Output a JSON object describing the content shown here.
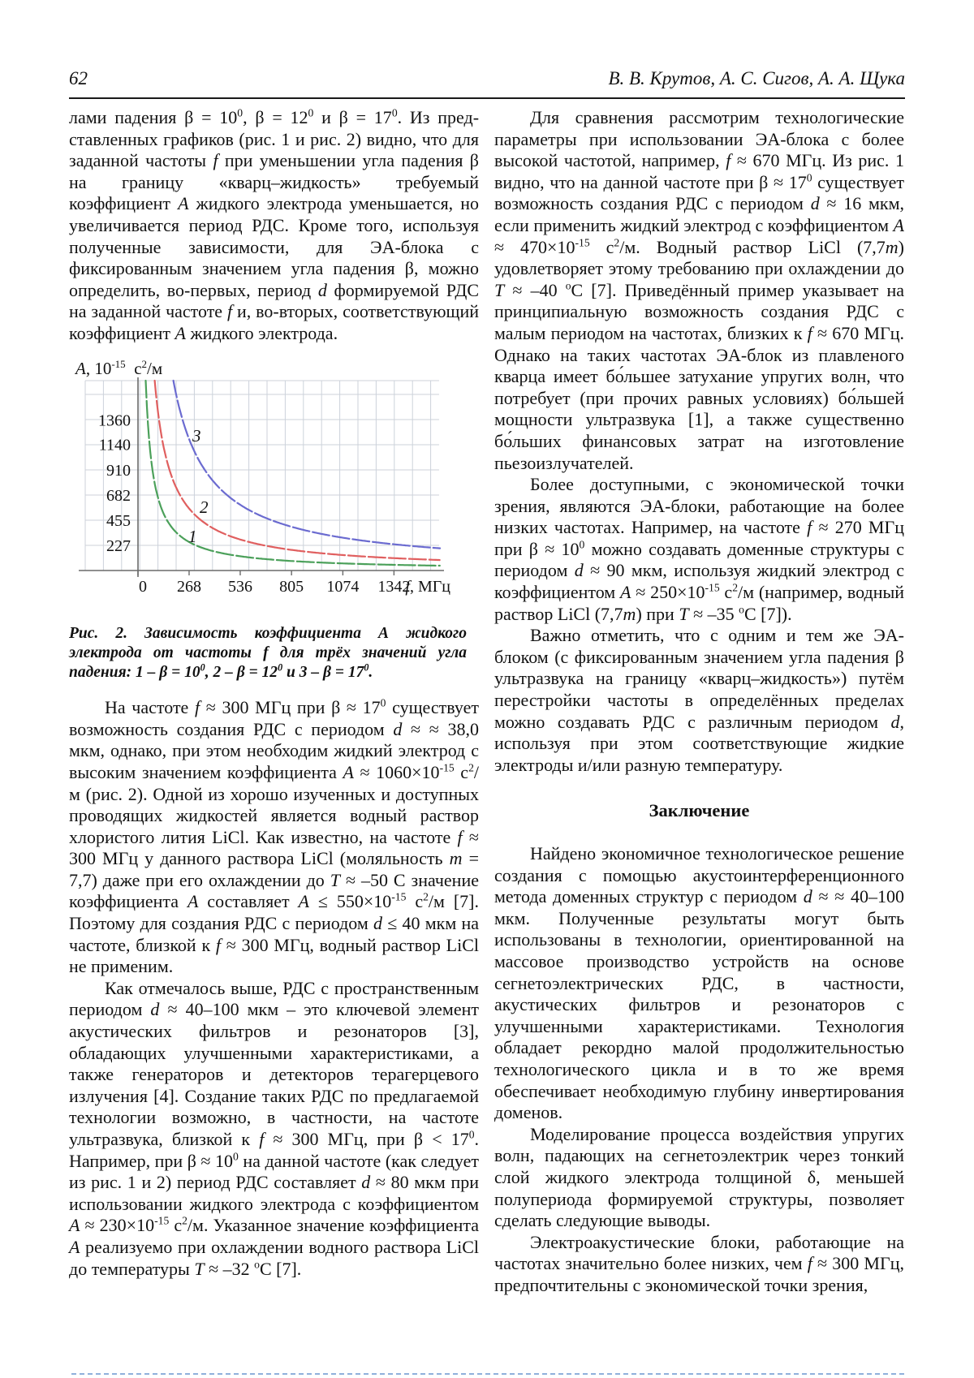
{
  "page": {
    "number": "62",
    "authors": "В. В. Крутов, А. С. Сигов, А. А. Щука"
  },
  "left_column": {
    "para_continuation_html": "лами падения β = 10<sup>0</sup>, β = 12<sup>0</sup> и β = 17<sup>0</sup>. Из пред­ставленных графиков (рис. 1 и рис. 2) видно, что для заданной частоты <i>f</i> при уменьшении угла падения β на границу «кварц–жидкость» требуемый коэффициент <i>А</i> жидкого электрода уменьшается, но увеличивается период РДС. Кроме того, используя полученные зависимости, для ЭА-блока с фиксированным значением угла падения β, можно определить, во-первых, период <i>d</i> формируемой РДС на заданной частоте <i>f</i> и, во-вторых, соответствующий коэффициент <i>А</i> жидкого электрода.",
    "figure": {
      "caption_html": "Рис. 2. Зависимость коэффициента <i>А</i> жидкого электрода от частоты <i>f</i> для трёх значений угла падения: 1 – <i>β</i> = 10<sup>0</sup>, 2 – <i>β</i> = 12<sup>0</sup> и 3 – <i>β</i> = 17<sup>0</sup>."
    },
    "para_2_html": "На частоте <i>f</i> ≈ 300 МГц при β ≈ 17<sup>0</sup> существует возможность создания РДС с периодом <i>d</i> ≈ ≈ 38,0 мкм, однако, при этом необходим жидкий электрод с высоким значением коэффициента <i>А</i> ≈ 1060×10<sup>-15</sup> с<sup>2</sup>/м (рис. 2). Одной из хорошо изученных и доступных проводящих жидкостей является водный раствор хлористого лития LiCl. Как известно, на частоте <i>f</i> ≈ 300 МГц у данного раствора LiCl (моляльность <i>m</i> = 7,7) даже при его охлаждении до <i>Т</i> ≈ –50 С значение коэффициента <i>А</i> составляет <i>А</i> ≤ 550×10<sup>-15</sup> с<sup>2</sup>/м [7]. Поэтому для создания РДС с периодом <i>d</i> ≤ 40 мкм на частоте, близкой к <i>f</i> ≈ 300 МГц, водный раствор LiCl не применим.",
    "para_3_html": "Как отмечалось выше, РДС с пространственным периодом <i>d</i> ≈ 40–100 мкм – это ключевой элемент акустических фильтров и резонаторов [3], обладающих улучшенными характеристиками, а также генераторов и детекторов терагерцевого излучения [4]. Создание таких РДС по предлагаемой технологии возможно, в частности, на частоте ультразвука, близкой к <i>f</i> ≈ 300 МГц, при β &lt; 17<sup>0</sup>. Например, при β ≈ 10<sup>0</sup> на данной частоте (как следует из рис. 1 и 2) период РДС составляет <i>d</i> ≈ 80 мкм при использовании жидкого электрода с коэффициентом <i>А</i> ≈ 230×10<sup>-15</sup> с<sup>2</sup>/м. Указанное значение коэффициента <i>А</i> реализуемо при охлаждении водного раствора LiCl до температуры <i>Т</i> ≈ –32 <sup>о</sup>С [7]."
  },
  "right_column": {
    "para_1_html": "Для сравнения рассмотрим технологические параметры при использовании ЭА-блока с более высокой частотой, например, <i>f</i> ≈ 670 МГц. Из рис. 1 видно, что на данной частоте при β ≈ 17<sup>0</sup> существует возможность создания РДС с периодом <i>d</i> ≈ 16 мкм, если применить жидкий электрод с коэффициентом <i>А</i> ≈ 470×10<sup>-15</sup> с<sup>2</sup>/м. Водный раствор LiCl (7,7<i>m</i>) удовлетворяет этому требованию при охлаждении до <i>Т</i> ≈ –40 <sup>о</sup>С [7]. Приведённый пример указывает на принципиальную возможность создания РДС с малым периодом на частотах, близких к <i>f</i> ≈ 670 МГц. Однако на таких частотах ЭА-блок из плавленого кварца имеет бо́льшее затухание упругих волн, что потребует (при прочих равных условиях) бо́льшей мощности ультразвука [1], а также существенно бо́льших финансовых затрат на изготовление пьезоизлучателей.",
    "para_2_html": "Более доступными, с экономической точки зрения, являются ЭА-блоки, работающие на более низких частотах. Например, на частоте <i>f</i> ≈ 270 МГц при β ≈ 10<sup>0</sup> можно создавать доменные структуры с периодом <i>d</i> ≈ 90 мкм, используя жидкий электрод с коэффициентом <i>А</i> ≈ 250×10<sup>-15</sup> с<sup>2</sup>/м (например, водный раствор LiCl (7,7<i>m</i>) при <i>Т</i> ≈ –35 <sup>о</sup>С [7]).",
    "para_3_html": "Важно отметить, что с одним и тем же ЭА-блоком (с фиксированным значением угла падения β ультразвука на границу «кварц–жидкость») путём перестройки частоты в определённых пределах можно создавать РДС с различным периодом <i>d</i>, используя при этом соответствующие жидкие электроды и/или разную температуру.",
    "conclusion_heading": "Заключение",
    "para_4_html": "Найдено экономичное технологическое решение создания с помощью акустоинтерференционного метода доменных структур с периодом <i>d</i> ≈ ≈ 40–100 мкм. Полученные результаты могут быть использованы в технологии, ориентированной на массовое производство устройств на основе сегнетоэлектрических РДС, в частности, акустических фильтров и резонаторов с улучшенными характеристиками. Технология обладает рекордно малой продолжительностью технологического цикла и в то же время обеспечивает необходимую глубину инвертирования доменов.",
    "para_5_html": "Моделирование процесса воздействия упругих волн, падающих на сегнетоэлектрик через тонкий слой жидкого электрода толщиной δ, меньшей полупериода формируемой структуры, позволяет сделать следующие выводы.",
    "para_6_html": "Электроакустические блоки, работающие на частотах значительно более низких, чем <i>f</i> ≈ 300 МГц, предпочтительны с экономической точки зрения,"
  },
  "chart_data": {
    "type": "line",
    "figure_label": "Рис. 2",
    "ylabel": "A, 10^-15 с^2/м",
    "ylabel_html": "<i>A</i>, 10<sup>-15</sup>&nbsp; с<sup>2</sup>/м",
    "xlabel": "f, МГц",
    "xlabel_var": "f",
    "xlabel_rest": ", МГц",
    "x_ticks": [
      0,
      268,
      536,
      805,
      1074,
      1342
    ],
    "y_ticks": [
      227,
      455,
      682,
      910,
      1140,
      1360
    ],
    "xlim": [
      0,
      1600
    ],
    "ylim": [
      0,
      1714
    ],
    "grid": "on",
    "model": "hyperbolic decay A ≈ k/f",
    "series": [
      {
        "label": "1",
        "angle": "β = 10⁰",
        "color": "#4ba05a",
        "k": 69000,
        "label_pos": [
          147,
          227
        ]
      },
      {
        "label": "2",
        "angle": "β = 12⁰",
        "color": "#e05f5f",
        "k": 150000,
        "label_pos": [
          161,
          191
        ]
      },
      {
        "label": "3",
        "angle": "β = 17⁰",
        "color": "#6b6bd0",
        "k": 318000,
        "label_pos": [
          152,
          103
        ]
      }
    ],
    "reference_points": [
      {
        "series": "1",
        "f": 300,
        "A": 230
      },
      {
        "series": "1",
        "f": 270,
        "A": 250
      },
      {
        "series": "2",
        "f": 300,
        "A": 500
      },
      {
        "series": "3",
        "f": 300,
        "A": 1060
      },
      {
        "series": "3",
        "f": 670,
        "A": 470
      }
    ]
  }
}
